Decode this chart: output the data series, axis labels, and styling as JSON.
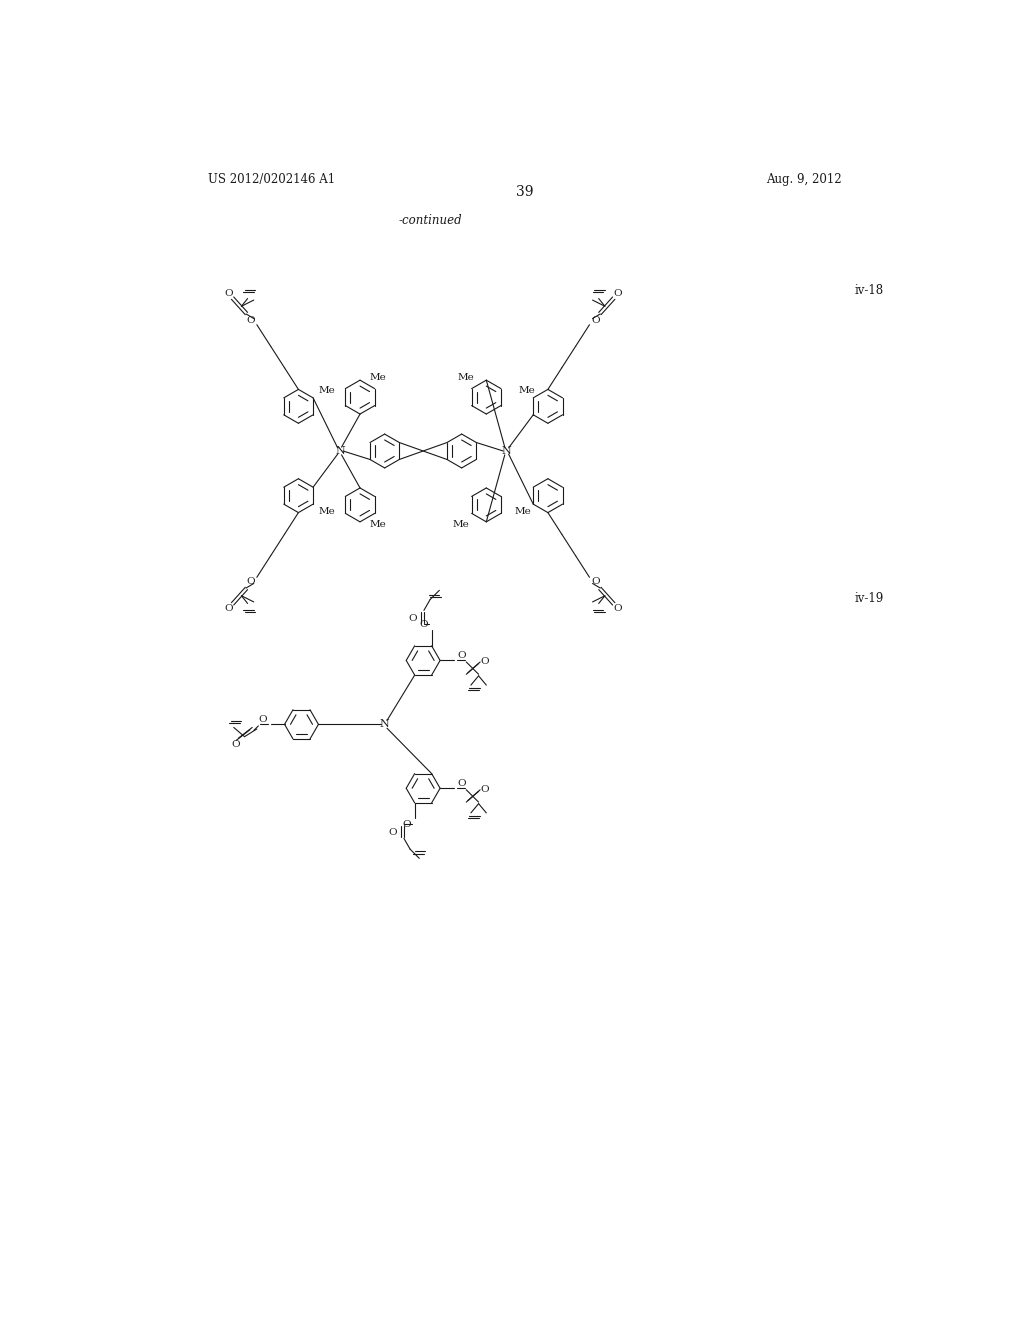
{
  "header_left": "US 2012/0202146 A1",
  "header_right": "Aug. 9, 2012",
  "page_number": "39",
  "continued_text": "-continued",
  "label_iv18": "iv-18",
  "label_iv19": "iv-19",
  "bg_color": "#ffffff",
  "text_color": "#1a1a1a",
  "line_color": "#1a1a1a",
  "lw": 0.8
}
